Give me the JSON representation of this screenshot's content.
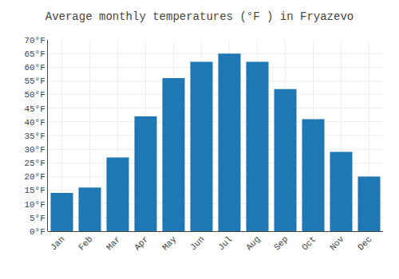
{
  "chart_data": {
    "type": "bar",
    "title": "Average monthly temperatures (°F ) in Fryazevo",
    "categories": [
      "Jan",
      "Feb",
      "Mar",
      "Apr",
      "May",
      "Jun",
      "Jul",
      "Aug",
      "Sep",
      "Oct",
      "Nov",
      "Dec"
    ],
    "values": [
      14,
      16,
      27,
      42,
      56,
      62,
      65,
      62,
      52,
      41,
      29,
      20
    ],
    "ylim": [
      0,
      70
    ],
    "yticks": [
      {
        "value": 0,
        "label": "0°F"
      },
      {
        "value": 5,
        "label": "5°F"
      },
      {
        "value": 10,
        "label": "10°F"
      },
      {
        "value": 15,
        "label": "15°F"
      },
      {
        "value": 20,
        "label": "20°F"
      },
      {
        "value": 25,
        "label": "25°F"
      },
      {
        "value": 30,
        "label": "30°F"
      },
      {
        "value": 35,
        "label": "35°F"
      },
      {
        "value": 40,
        "label": "40°F"
      },
      {
        "value": 45,
        "label": "45°F"
      },
      {
        "value": 50,
        "label": "50°F"
      },
      {
        "value": 55,
        "label": "55°F"
      },
      {
        "value": 60,
        "label": "60°F"
      },
      {
        "value": 65,
        "label": "65°F"
      },
      {
        "value": 70,
        "label": "70°F"
      }
    ],
    "grid": true
  }
}
